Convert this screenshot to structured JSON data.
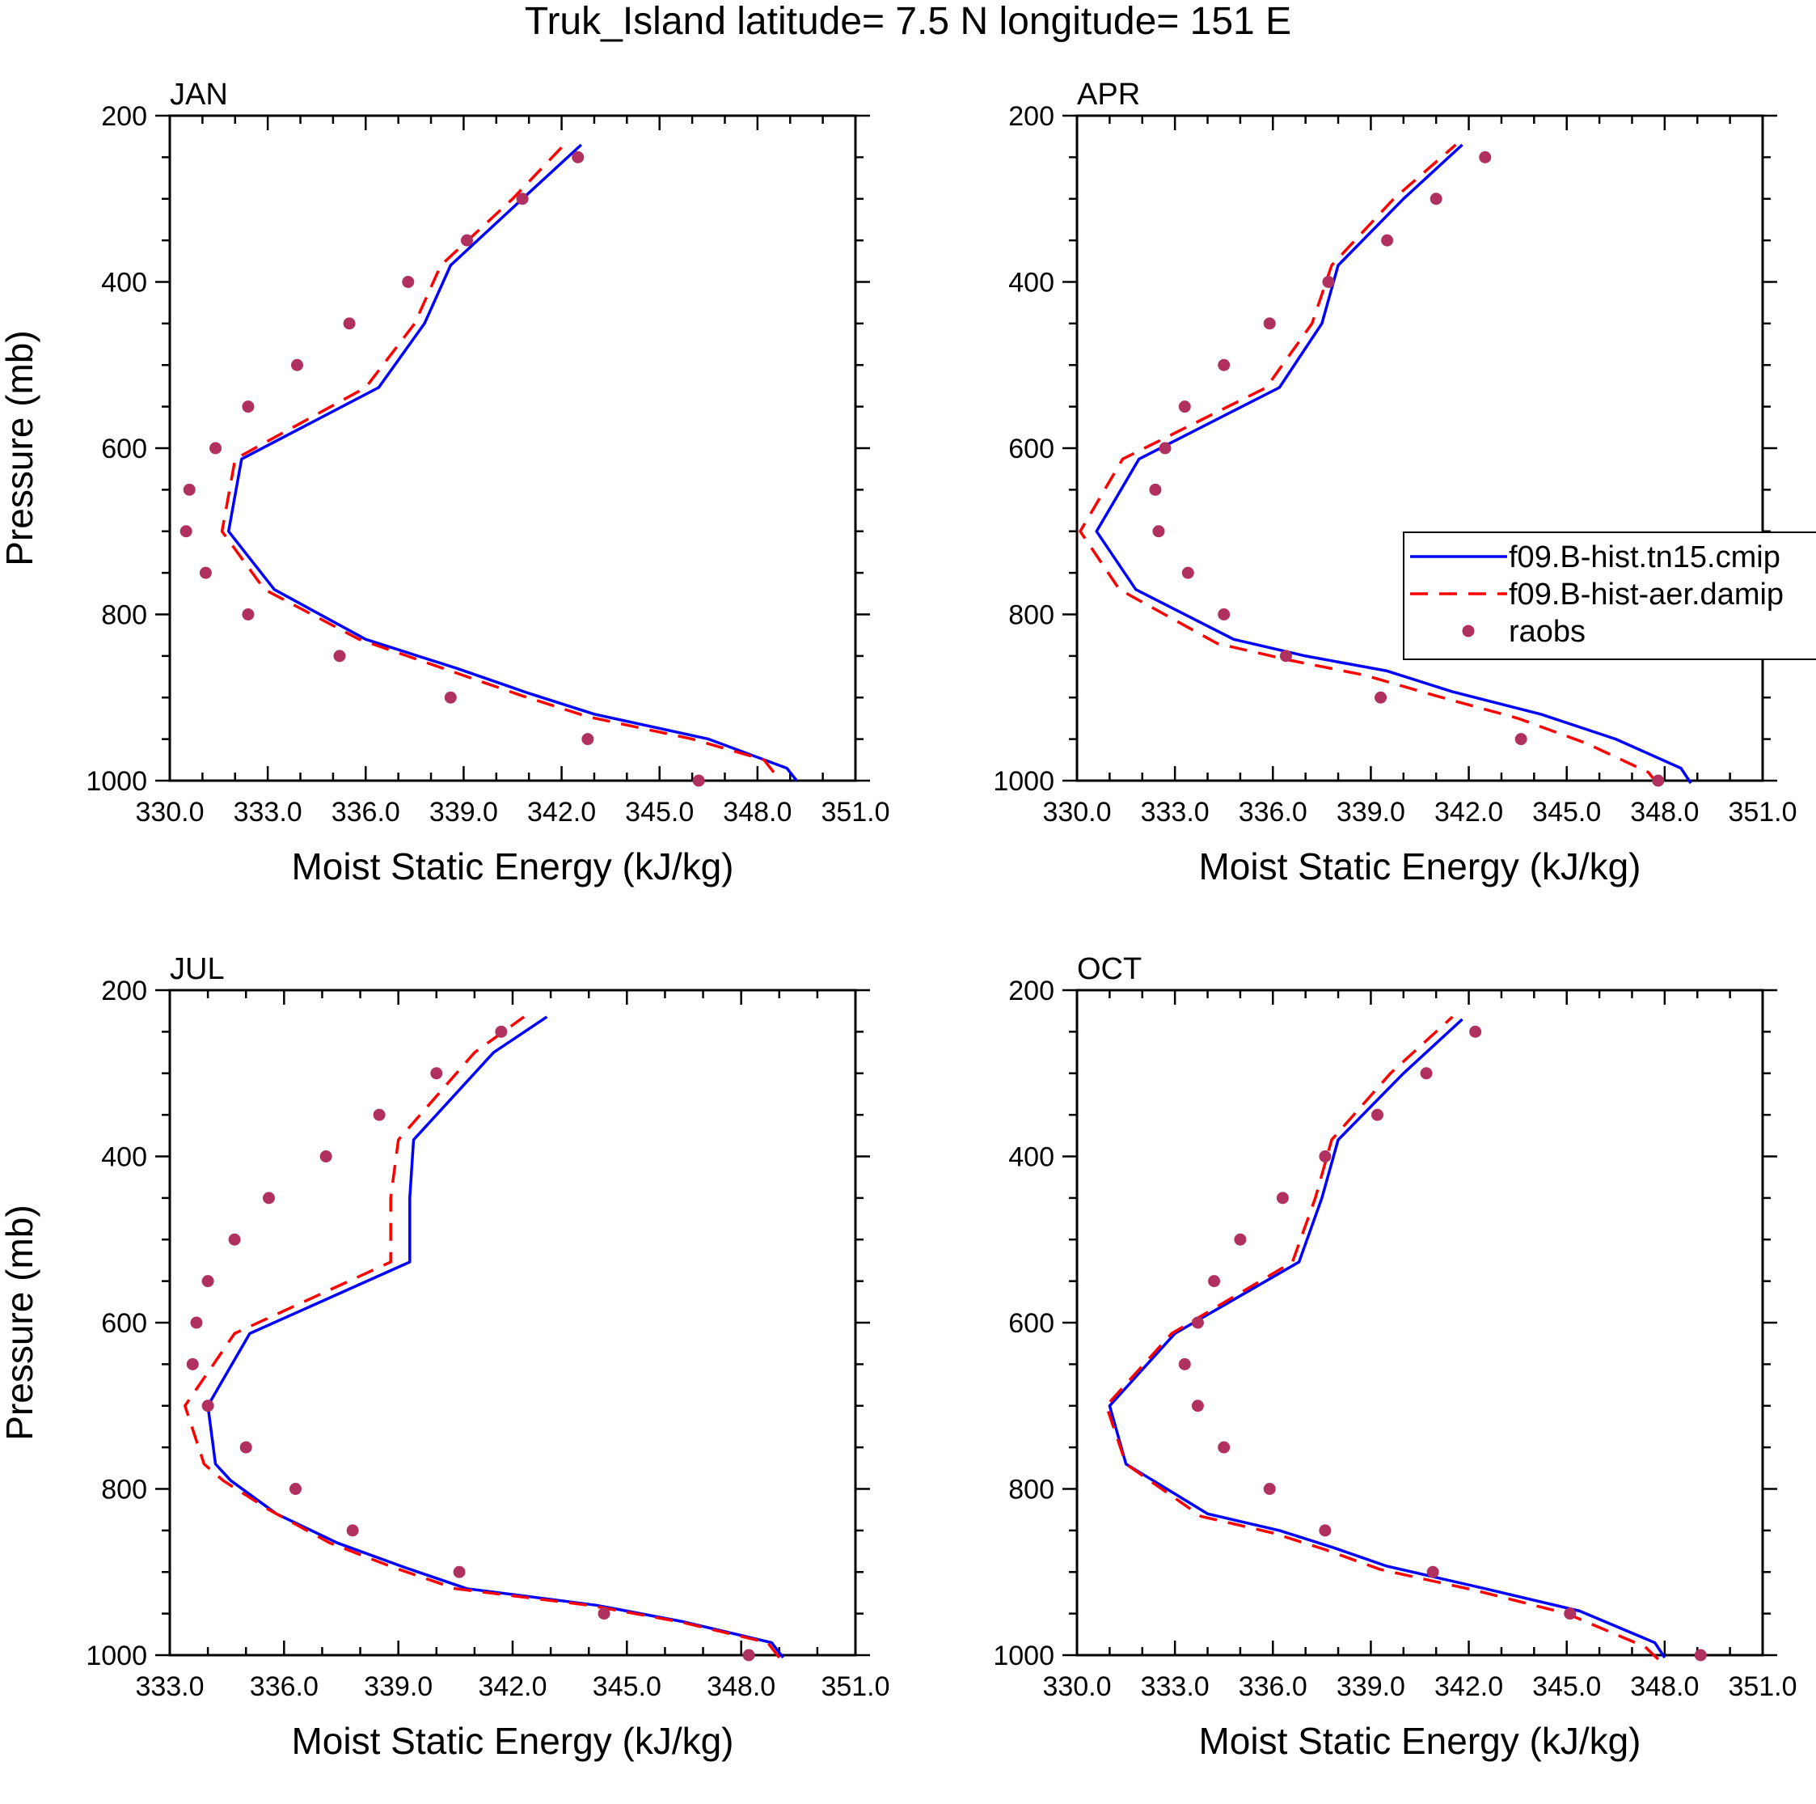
{
  "title": "Truk_Island  latitude= 7.5 N longitude= 151 E",
  "legend": {
    "entries": [
      {
        "label": "f09.B-hist.tn15.cmip",
        "style": "solid",
        "color": "#0000ff"
      },
      {
        "label": "f09.B-hist-aer.damip",
        "style": "dashed",
        "color": "#ff0000"
      },
      {
        "label": "raobs",
        "style": "marker",
        "color": "#b03060"
      }
    ]
  },
  "chart_data": [
    {
      "type": "line",
      "title": "JAN",
      "xlabel": "Moist Static Energy (kJ/kg)",
      "ylabel": "Pressure (mb)",
      "xlim": [
        330,
        351
      ],
      "ylim": [
        1000,
        200
      ],
      "xticks": [
        "330.0",
        "333.0",
        "336.0",
        "339.0",
        "342.0",
        "345.0",
        "348.0",
        "351.0"
      ],
      "yticks": [
        "200",
        "400",
        "600",
        "800",
        "1000"
      ],
      "series": [
        {
          "name": "f09.B-hist.tn15.cmip",
          "color": "#0000ff",
          "dash": "",
          "x": [
            349.2,
            348.9,
            346.5,
            343.0,
            341.0,
            338.8,
            336.0,
            333.2,
            331.8,
            332.2,
            336.4,
            337.8,
            338.6,
            340.8,
            342.6
          ],
          "y": [
            1000,
            985,
            950,
            920,
            895,
            865,
            830,
            770,
            700,
            613,
            527,
            450,
            380,
            300,
            235
          ]
        },
        {
          "name": "f09.B-hist-aer.damip",
          "color": "#ff0000",
          "dash": "22,14",
          "x": [
            348.5,
            348.2,
            346.0,
            342.8,
            340.8,
            338.6,
            335.8,
            332.9,
            331.6,
            332.0,
            336.0,
            337.5,
            338.3,
            340.5,
            342.2
          ],
          "y": [
            990,
            975,
            950,
            923,
            898,
            868,
            830,
            770,
            700,
            613,
            527,
            450,
            380,
            300,
            230
          ]
        },
        {
          "name": "raobs",
          "color": "#b03060",
          "marker": true,
          "x": [
            346.2,
            342.8,
            338.6,
            335.2,
            332.4,
            331.1,
            330.5,
            330.6,
            331.4,
            332.4,
            333.9,
            335.5,
            337.3,
            339.1,
            340.8,
            342.5
          ],
          "y": [
            1000,
            950,
            900,
            850,
            800,
            750,
            700,
            650,
            600,
            550,
            500,
            450,
            400,
            350,
            300,
            250
          ]
        }
      ]
    },
    {
      "type": "line",
      "title": "APR",
      "xlabel": "Moist Static Energy (kJ/kg)",
      "ylabel": "",
      "xlim": [
        330,
        351
      ],
      "ylim": [
        1000,
        200
      ],
      "xticks": [
        "330.0",
        "333.0",
        "336.0",
        "339.0",
        "342.0",
        "345.0",
        "348.0",
        "351.0"
      ],
      "yticks": [
        "200",
        "400",
        "600",
        "800",
        "1000"
      ],
      "series": [
        {
          "name": "f09.B-hist.tn15.cmip",
          "color": "#0000ff",
          "dash": "",
          "x": [
            348.8,
            348.5,
            346.5,
            344.2,
            341.5,
            339.5,
            337.0,
            334.8,
            331.8,
            330.6,
            331.9,
            336.2,
            337.5,
            338.0,
            340.0,
            341.8
          ],
          "y": [
            1003,
            985,
            950,
            920,
            893,
            868,
            850,
            830,
            770,
            700,
            613,
            527,
            450,
            380,
            300,
            235
          ]
        },
        {
          "name": "f09.B-hist-aer.damip",
          "color": "#ff0000",
          "dash": "22,14",
          "x": [
            347.8,
            347.5,
            345.6,
            343.5,
            341.0,
            338.8,
            336.5,
            334.3,
            331.3,
            330.1,
            331.4,
            335.8,
            337.2,
            337.8,
            339.7,
            341.6
          ],
          "y": [
            1005,
            990,
            955,
            925,
            898,
            873,
            855,
            835,
            770,
            700,
            613,
            527,
            450,
            380,
            300,
            235
          ]
        },
        {
          "name": "raobs",
          "color": "#b03060",
          "marker": true,
          "x": [
            347.8,
            343.6,
            339.3,
            336.4,
            334.5,
            333.4,
            332.5,
            332.4,
            332.7,
            333.3,
            334.5,
            335.9,
            337.7,
            339.5,
            341.0,
            342.5
          ],
          "y": [
            1000,
            950,
            900,
            850,
            800,
            750,
            700,
            650,
            600,
            550,
            500,
            450,
            400,
            350,
            300,
            250
          ]
        }
      ]
    },
    {
      "type": "line",
      "title": "JUL",
      "xlabel": "Moist Static Energy (kJ/kg)",
      "ylabel": "Pressure (mb)",
      "xlim": [
        333,
        351
      ],
      "ylim": [
        1000,
        200
      ],
      "xticks": [
        "333.0",
        "336.0",
        "339.0",
        "342.0",
        "345.0",
        "348.0",
        "351.0"
      ],
      "yticks": [
        "200",
        "400",
        "600",
        "800",
        "1000"
      ],
      "series": [
        {
          "name": "f09.B-hist.tn15.cmip",
          "color": "#0000ff",
          "dash": "",
          "x": [
            349.1,
            348.8,
            346.5,
            344.2,
            340.8,
            339.2,
            337.4,
            335.8,
            334.6,
            334.2,
            334.0,
            335.1,
            339.3,
            339.3,
            339.4,
            341.5,
            342.9
          ],
          "y": [
            1003,
            985,
            960,
            940,
            920,
            895,
            865,
            830,
            790,
            770,
            700,
            613,
            527,
            450,
            380,
            275,
            232
          ]
        },
        {
          "name": "f09.B-hist-aer.damip",
          "color": "#ff0000",
          "dash": "22,14",
          "x": [
            349.0,
            348.7,
            346.4,
            344.0,
            340.5,
            338.9,
            337.2,
            335.6,
            334.4,
            333.9,
            333.4,
            334.7,
            338.8,
            338.8,
            339.0,
            341.0,
            342.3
          ],
          "y": [
            1003,
            985,
            960,
            940,
            920,
            895,
            865,
            825,
            790,
            770,
            700,
            613,
            527,
            450,
            380,
            275,
            232
          ]
        },
        {
          "name": "raobs",
          "color": "#b03060",
          "marker": true,
          "x": [
            348.2,
            344.4,
            340.6,
            337.8,
            336.3,
            335.0,
            334.0,
            333.6,
            333.7,
            334.0,
            334.7,
            335.6,
            337.1,
            338.5,
            340.0,
            341.7
          ],
          "y": [
            1000,
            950,
            900,
            850,
            800,
            750,
            700,
            650,
            600,
            550,
            500,
            450,
            400,
            350,
            300,
            250
          ]
        }
      ]
    },
    {
      "type": "line",
      "title": "OCT",
      "xlabel": "Moist Static Energy (kJ/kg)",
      "ylabel": "",
      "xlim": [
        330,
        351
      ],
      "ylim": [
        1000,
        200
      ],
      "xticks": [
        "330.0",
        "333.0",
        "336.0",
        "339.0",
        "342.0",
        "345.0",
        "348.0",
        "351.0"
      ],
      "yticks": [
        "200",
        "400",
        "600",
        "800",
        "1000"
      ],
      "series": [
        {
          "name": "f09.B-hist.tn15.cmip",
          "color": "#0000ff",
          "dash": "",
          "x": [
            348.0,
            347.7,
            345.4,
            342.5,
            339.5,
            337.8,
            336.2,
            334.0,
            331.5,
            331.0,
            333.0,
            336.8,
            337.5,
            338.0,
            340.0,
            341.8
          ],
          "y": [
            1003,
            985,
            947,
            920,
            893,
            870,
            850,
            830,
            770,
            700,
            613,
            527,
            450,
            380,
            300,
            235
          ]
        },
        {
          "name": "f09.B-hist-aer.damip",
          "color": "#ff0000",
          "dash": "22,14",
          "x": [
            347.8,
            347.4,
            345.0,
            342.2,
            339.3,
            337.6,
            336.0,
            333.8,
            331.5,
            330.9,
            332.9,
            336.6,
            337.3,
            337.8,
            339.6,
            341.5
          ],
          "y": [
            1005,
            990,
            950,
            922,
            897,
            873,
            853,
            833,
            770,
            700,
            613,
            527,
            450,
            380,
            300,
            232
          ]
        },
        {
          "name": "raobs",
          "color": "#b03060",
          "marker": true,
          "x": [
            349.1,
            345.1,
            340.9,
            337.6,
            335.9,
            334.5,
            333.7,
            333.3,
            333.7,
            334.2,
            335.0,
            336.3,
            337.6,
            339.2,
            340.7,
            342.2
          ],
          "y": [
            1000,
            950,
            900,
            850,
            800,
            750,
            700,
            650,
            600,
            550,
            500,
            450,
            400,
            350,
            300,
            250
          ]
        }
      ]
    }
  ]
}
